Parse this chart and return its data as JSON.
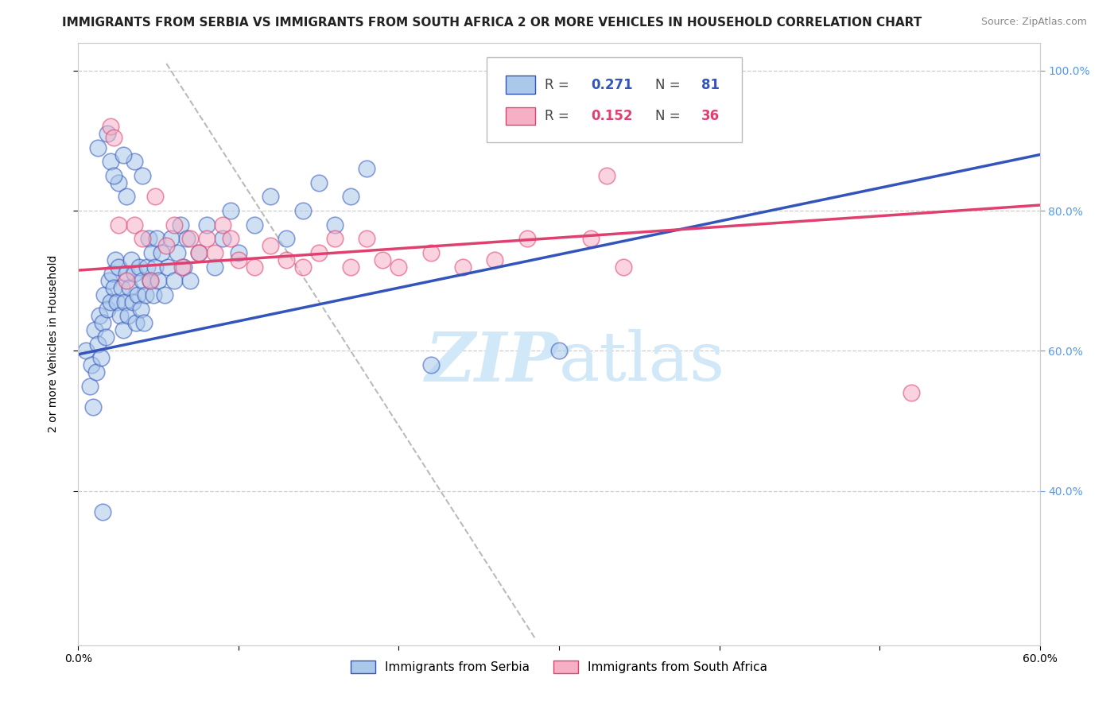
{
  "title": "IMMIGRANTS FROM SERBIA VS IMMIGRANTS FROM SOUTH AFRICA 2 OR MORE VEHICLES IN HOUSEHOLD CORRELATION CHART",
  "source": "Source: ZipAtlas.com",
  "ylabel": "2 or more Vehicles in Household",
  "legend_label1": "Immigrants from Serbia",
  "legend_label2": "Immigrants from South Africa",
  "R1": 0.271,
  "N1": 81,
  "R2": 0.152,
  "N2": 36,
  "color1": "#aac8ea",
  "color2": "#f5b0c5",
  "line_color1": "#3355bb",
  "line_color2": "#e04070",
  "xlim": [
    0.0,
    0.6
  ],
  "ylim": [
    0.18,
    1.04
  ],
  "background_color": "#ffffff",
  "grid_color": "#cccccc",
  "watermark_color": "#d0e8f8",
  "title_fontsize": 11,
  "axis_label_fontsize": 10,
  "tick_fontsize": 10,
  "right_tick_color": "#5599ee",
  "serbia_x": [
    0.005,
    0.007,
    0.008,
    0.009,
    0.01,
    0.011,
    0.012,
    0.013,
    0.014,
    0.015,
    0.016,
    0.017,
    0.018,
    0.019,
    0.02,
    0.021,
    0.022,
    0.023,
    0.024,
    0.025,
    0.026,
    0.027,
    0.028,
    0.029,
    0.03,
    0.031,
    0.032,
    0.033,
    0.034,
    0.035,
    0.036,
    0.037,
    0.038,
    0.039,
    0.04,
    0.041,
    0.042,
    0.043,
    0.044,
    0.045,
    0.046,
    0.047,
    0.048,
    0.049,
    0.05,
    0.052,
    0.054,
    0.056,
    0.058,
    0.06,
    0.062,
    0.064,
    0.066,
    0.068,
    0.07,
    0.075,
    0.08,
    0.085,
    0.09,
    0.095,
    0.1,
    0.11,
    0.12,
    0.13,
    0.14,
    0.15,
    0.16,
    0.17,
    0.18,
    0.02,
    0.025,
    0.03,
    0.035,
    0.04,
    0.012,
    0.018,
    0.022,
    0.028,
    0.015,
    0.22,
    0.3
  ],
  "serbia_y": [
    0.6,
    0.55,
    0.58,
    0.52,
    0.63,
    0.57,
    0.61,
    0.65,
    0.59,
    0.64,
    0.68,
    0.62,
    0.66,
    0.7,
    0.67,
    0.71,
    0.69,
    0.73,
    0.67,
    0.72,
    0.65,
    0.69,
    0.63,
    0.67,
    0.71,
    0.65,
    0.69,
    0.73,
    0.67,
    0.71,
    0.64,
    0.68,
    0.72,
    0.66,
    0.7,
    0.64,
    0.68,
    0.72,
    0.76,
    0.7,
    0.74,
    0.68,
    0.72,
    0.76,
    0.7,
    0.74,
    0.68,
    0.72,
    0.76,
    0.7,
    0.74,
    0.78,
    0.72,
    0.76,
    0.7,
    0.74,
    0.78,
    0.72,
    0.76,
    0.8,
    0.74,
    0.78,
    0.82,
    0.76,
    0.8,
    0.84,
    0.78,
    0.82,
    0.86,
    0.87,
    0.84,
    0.82,
    0.87,
    0.85,
    0.89,
    0.91,
    0.85,
    0.88,
    0.37,
    0.58,
    0.6
  ],
  "s_africa_x": [
    0.02,
    0.022,
    0.035,
    0.04,
    0.048,
    0.055,
    0.06,
    0.065,
    0.07,
    0.075,
    0.08,
    0.085,
    0.09,
    0.095,
    0.1,
    0.11,
    0.12,
    0.13,
    0.14,
    0.15,
    0.16,
    0.17,
    0.18,
    0.19,
    0.2,
    0.22,
    0.24,
    0.26,
    0.28,
    0.32,
    0.34,
    0.03,
    0.045,
    0.33,
    0.52,
    0.025
  ],
  "s_africa_y": [
    0.92,
    0.905,
    0.78,
    0.76,
    0.82,
    0.75,
    0.78,
    0.72,
    0.76,
    0.74,
    0.76,
    0.74,
    0.78,
    0.76,
    0.73,
    0.72,
    0.75,
    0.73,
    0.72,
    0.74,
    0.76,
    0.72,
    0.76,
    0.73,
    0.72,
    0.74,
    0.72,
    0.73,
    0.76,
    0.76,
    0.72,
    0.7,
    0.7,
    0.85,
    0.54,
    0.78
  ],
  "dash_line_x": [
    0.055,
    0.285
  ],
  "dash_line_y": [
    1.01,
    0.19
  ],
  "blue_trend_x0": 0.0,
  "blue_trend_y0": 0.595,
  "blue_trend_x1": 0.6,
  "blue_trend_y1": 0.88,
  "pink_trend_x0": 0.0,
  "pink_trend_y0": 0.715,
  "pink_trend_x1": 0.6,
  "pink_trend_y1": 0.808
}
